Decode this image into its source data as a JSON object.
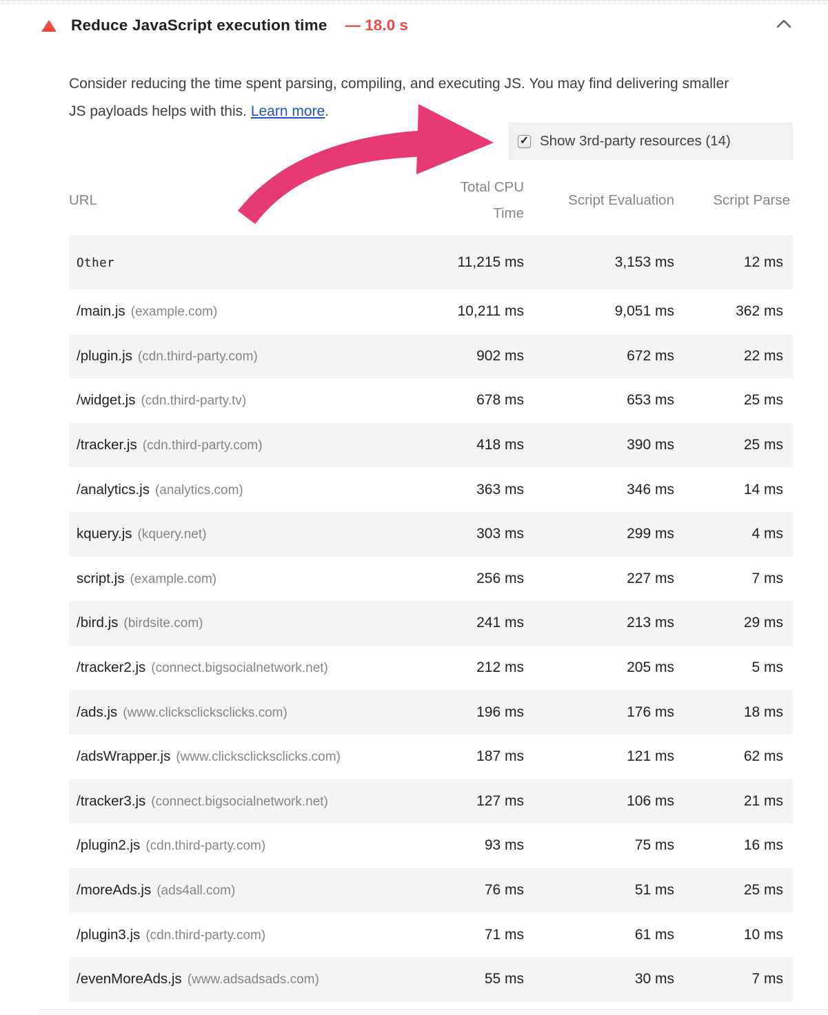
{
  "audit": {
    "title": "Reduce JavaScript execution time",
    "metric": "— 18.0 s",
    "severity_color": "#e94b42"
  },
  "description": {
    "text_before_link": "Consider reducing the time spent parsing, compiling, and executing JS. You may find delivering smaller JS payloads helps with this. ",
    "link_label": "Learn more",
    "text_after_link": "."
  },
  "third_party_toggle": {
    "checked": true,
    "check_glyph": "✓",
    "label": "Show 3rd-party resources (14)"
  },
  "table": {
    "columns": {
      "url": "URL",
      "total_cpu_time": "Total CPU Time",
      "script_evaluation": "Script Evaluation",
      "script_parse": "Script Parse"
    },
    "rows": [
      {
        "url": "Other",
        "domain": "",
        "mono": true,
        "total_cpu_time": "11,215 ms",
        "script_evaluation": "3,153 ms",
        "script_parse": "12 ms"
      },
      {
        "url": "/main.js",
        "domain": "(example.com)",
        "mono": false,
        "total_cpu_time": "10,211 ms",
        "script_evaluation": "9,051 ms",
        "script_parse": "362 ms"
      },
      {
        "url": "/plugin.js",
        "domain": "(cdn.third-party.com)",
        "mono": false,
        "total_cpu_time": "902 ms",
        "script_evaluation": "672 ms",
        "script_parse": "22 ms"
      },
      {
        "url": "/widget.js",
        "domain": "(cdn.third-party.tv)",
        "mono": false,
        "total_cpu_time": "678 ms",
        "script_evaluation": "653 ms",
        "script_parse": "25 ms"
      },
      {
        "url": "/tracker.js",
        "domain": "(cdn.third-party.com)",
        "mono": false,
        "total_cpu_time": "418 ms",
        "script_evaluation": "390 ms",
        "script_parse": "25 ms"
      },
      {
        "url": "/analytics.js",
        "domain": "(analytics.com)",
        "mono": false,
        "total_cpu_time": "363 ms",
        "script_evaluation": "346 ms",
        "script_parse": "14 ms"
      },
      {
        "url": "kquery.js",
        "domain": "(kquery.net)",
        "mono": false,
        "total_cpu_time": "303 ms",
        "script_evaluation": "299 ms",
        "script_parse": "4 ms"
      },
      {
        "url": "script.js",
        "domain": "(example.com)",
        "mono": false,
        "total_cpu_time": "256 ms",
        "script_evaluation": "227 ms",
        "script_parse": "7 ms"
      },
      {
        "url": "/bird.js",
        "domain": "(birdsite.com)",
        "mono": false,
        "total_cpu_time": "241 ms",
        "script_evaluation": "213 ms",
        "script_parse": "29 ms"
      },
      {
        "url": "/tracker2.js",
        "domain": "(connect.bigsocialnetwork.net)",
        "mono": false,
        "total_cpu_time": "212 ms",
        "script_evaluation": "205 ms",
        "script_parse": "5 ms"
      },
      {
        "url": "/ads.js",
        "domain": "(www.clicksclicksclicks.com)",
        "mono": false,
        "total_cpu_time": "196 ms",
        "script_evaluation": "176 ms",
        "script_parse": "18 ms"
      },
      {
        "url": "/adsWrapper.js",
        "domain": "(www.clicksclicksclicks.com)",
        "mono": false,
        "total_cpu_time": "187 ms",
        "script_evaluation": "121 ms",
        "script_parse": "62 ms"
      },
      {
        "url": "/tracker3.js",
        "domain": "(connect.bigsocialnetwork.net)",
        "mono": false,
        "total_cpu_time": "127 ms",
        "script_evaluation": "106 ms",
        "script_parse": "21 ms"
      },
      {
        "url": "/plugin2.js",
        "domain": "(cdn.third-party.com)",
        "mono": false,
        "total_cpu_time": "93 ms",
        "script_evaluation": "75 ms",
        "script_parse": "16 ms"
      },
      {
        "url": "/moreAds.js",
        "domain": "(ads4all.com)",
        "mono": false,
        "total_cpu_time": "76 ms",
        "script_evaluation": "51 ms",
        "script_parse": "25 ms"
      },
      {
        "url": "/plugin3.js",
        "domain": "(cdn.third-party.com)",
        "mono": false,
        "total_cpu_time": "71 ms",
        "script_evaluation": "61 ms",
        "script_parse": "10 ms"
      },
      {
        "url": "/evenMoreAds.js",
        "domain": "(www.adsadsads.com)",
        "mono": false,
        "total_cpu_time": "55 ms",
        "script_evaluation": "30 ms",
        "script_parse": "7 ms"
      }
    ]
  },
  "annotation": {
    "arrow_color": "#e73a72"
  },
  "colors": {
    "fail_red": "#e94b42",
    "link_blue": "#2150bf",
    "header_gray": "#80868b",
    "stripe_gray": "#f4f4f4",
    "toggle_bg": "#f1f1f1"
  }
}
